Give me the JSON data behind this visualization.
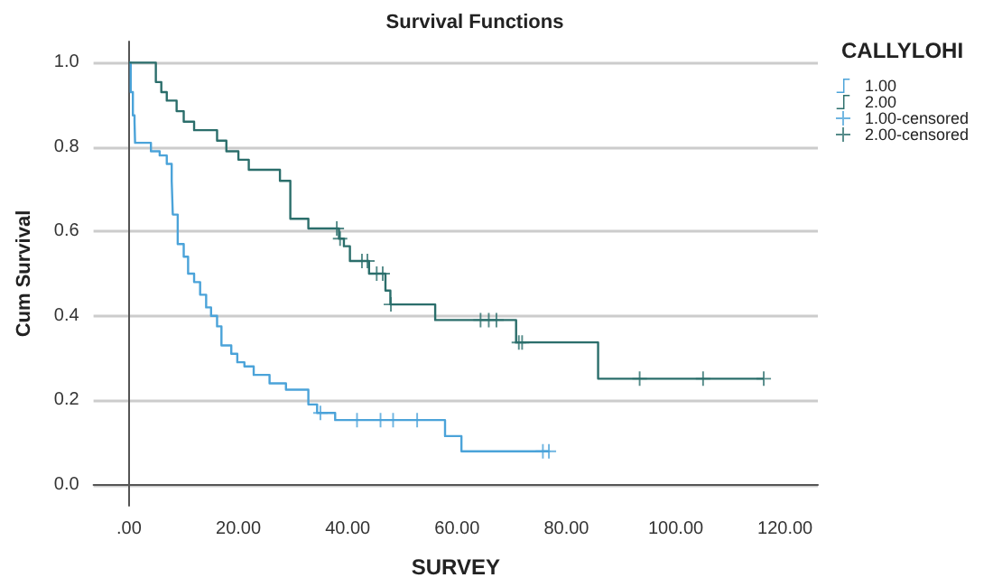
{
  "chart_data": {
    "type": "step",
    "title": "Survival Functions",
    "xlabel": "SURVEY",
    "ylabel": "Cum Survival",
    "legend_title": "CALLYLOHI",
    "legend": "top right",
    "grid": "y",
    "xlim": [
      -6.5,
      126
    ],
    "ylim": [
      -0.05,
      1.05
    ],
    "xticks": [
      {
        "value": 0,
        "label": ".00"
      },
      {
        "value": 20,
        "label": "20.00"
      },
      {
        "value": 40,
        "label": "40.00"
      },
      {
        "value": 60,
        "label": "60.00"
      },
      {
        "value": 80,
        "label": "80.00"
      },
      {
        "value": 100,
        "label": "100.00"
      },
      {
        "value": 120,
        "label": "120.00"
      }
    ],
    "yticks": [
      {
        "value": 0,
        "label": "0.0"
      },
      0.2,
      0.4,
      0.6,
      0.8,
      {
        "value": 1,
        "label": "1.0"
      }
    ],
    "series": [
      {
        "name": "1.00",
        "color": "#4ba3d9",
        "x": [
          0,
          0.3,
          0.7,
          1.0,
          1.1,
          4.0,
          5.6,
          6.9,
          7.8,
          8.0,
          8.9,
          10.0,
          10.8,
          11.9,
          13.0,
          14.1,
          15.0,
          16.1,
          16.9,
          18.7,
          19.8,
          21.1,
          22.8,
          25.7,
          28.7,
          32.8,
          34.4,
          37.7,
          57.8,
          60.8,
          76.8
        ],
        "values": [
          1.0,
          0.93,
          0.875,
          0.86,
          0.81,
          0.79,
          0.78,
          0.76,
          0.72,
          0.64,
          0.57,
          0.54,
          0.5,
          0.48,
          0.45,
          0.42,
          0.4,
          0.375,
          0.33,
          0.31,
          0.29,
          0.28,
          0.26,
          0.24,
          0.225,
          0.19,
          0.17,
          0.153,
          0.115,
          0.079,
          0.079
        ]
      },
      {
        "name": "2.00",
        "color": "#2b6e6b",
        "x": [
          0,
          4.9,
          5.9,
          6.9,
          8.7,
          10.0,
          11.9,
          16.1,
          17.8,
          20.0,
          21.9,
          27.6,
          29.5,
          32.8,
          38.4,
          39.3,
          40.4,
          43.9,
          46.9,
          47.8,
          56.0,
          70.8,
          85.8,
          116.1
        ],
        "values": [
          1.0,
          0.954,
          0.93,
          0.91,
          0.885,
          0.86,
          0.84,
          0.815,
          0.79,
          0.77,
          0.746,
          0.72,
          0.63,
          0.607,
          0.583,
          0.565,
          0.53,
          0.5,
          0.46,
          0.427,
          0.39,
          0.337,
          0.251,
          0.251
        ]
      },
      {
        "name": "1.00-censored",
        "type": "scatter",
        "marker": "cross",
        "color": "#4ba3d9",
        "x": [
          35.0,
          41.7,
          46.0,
          48.3,
          52.7,
          75.7,
          76.8
        ],
        "values": [
          0.17,
          0.153,
          0.153,
          0.153,
          0.153,
          0.079,
          0.079
        ]
      },
      {
        "name": "2.00-censored",
        "type": "scatter",
        "marker": "cross",
        "color": "#2b6e6b",
        "x": [
          38.0,
          38.6,
          42.6,
          43.6,
          45.3,
          46.4,
          47.9,
          64.3,
          65.8,
          67.2,
          71.3,
          71.9,
          93.4,
          105.0,
          116.1
        ],
        "values": [
          0.607,
          0.583,
          0.53,
          0.53,
          0.5,
          0.5,
          0.427,
          0.39,
          0.39,
          0.39,
          0.337,
          0.337,
          0.251,
          0.251,
          0.251
        ]
      }
    ]
  }
}
